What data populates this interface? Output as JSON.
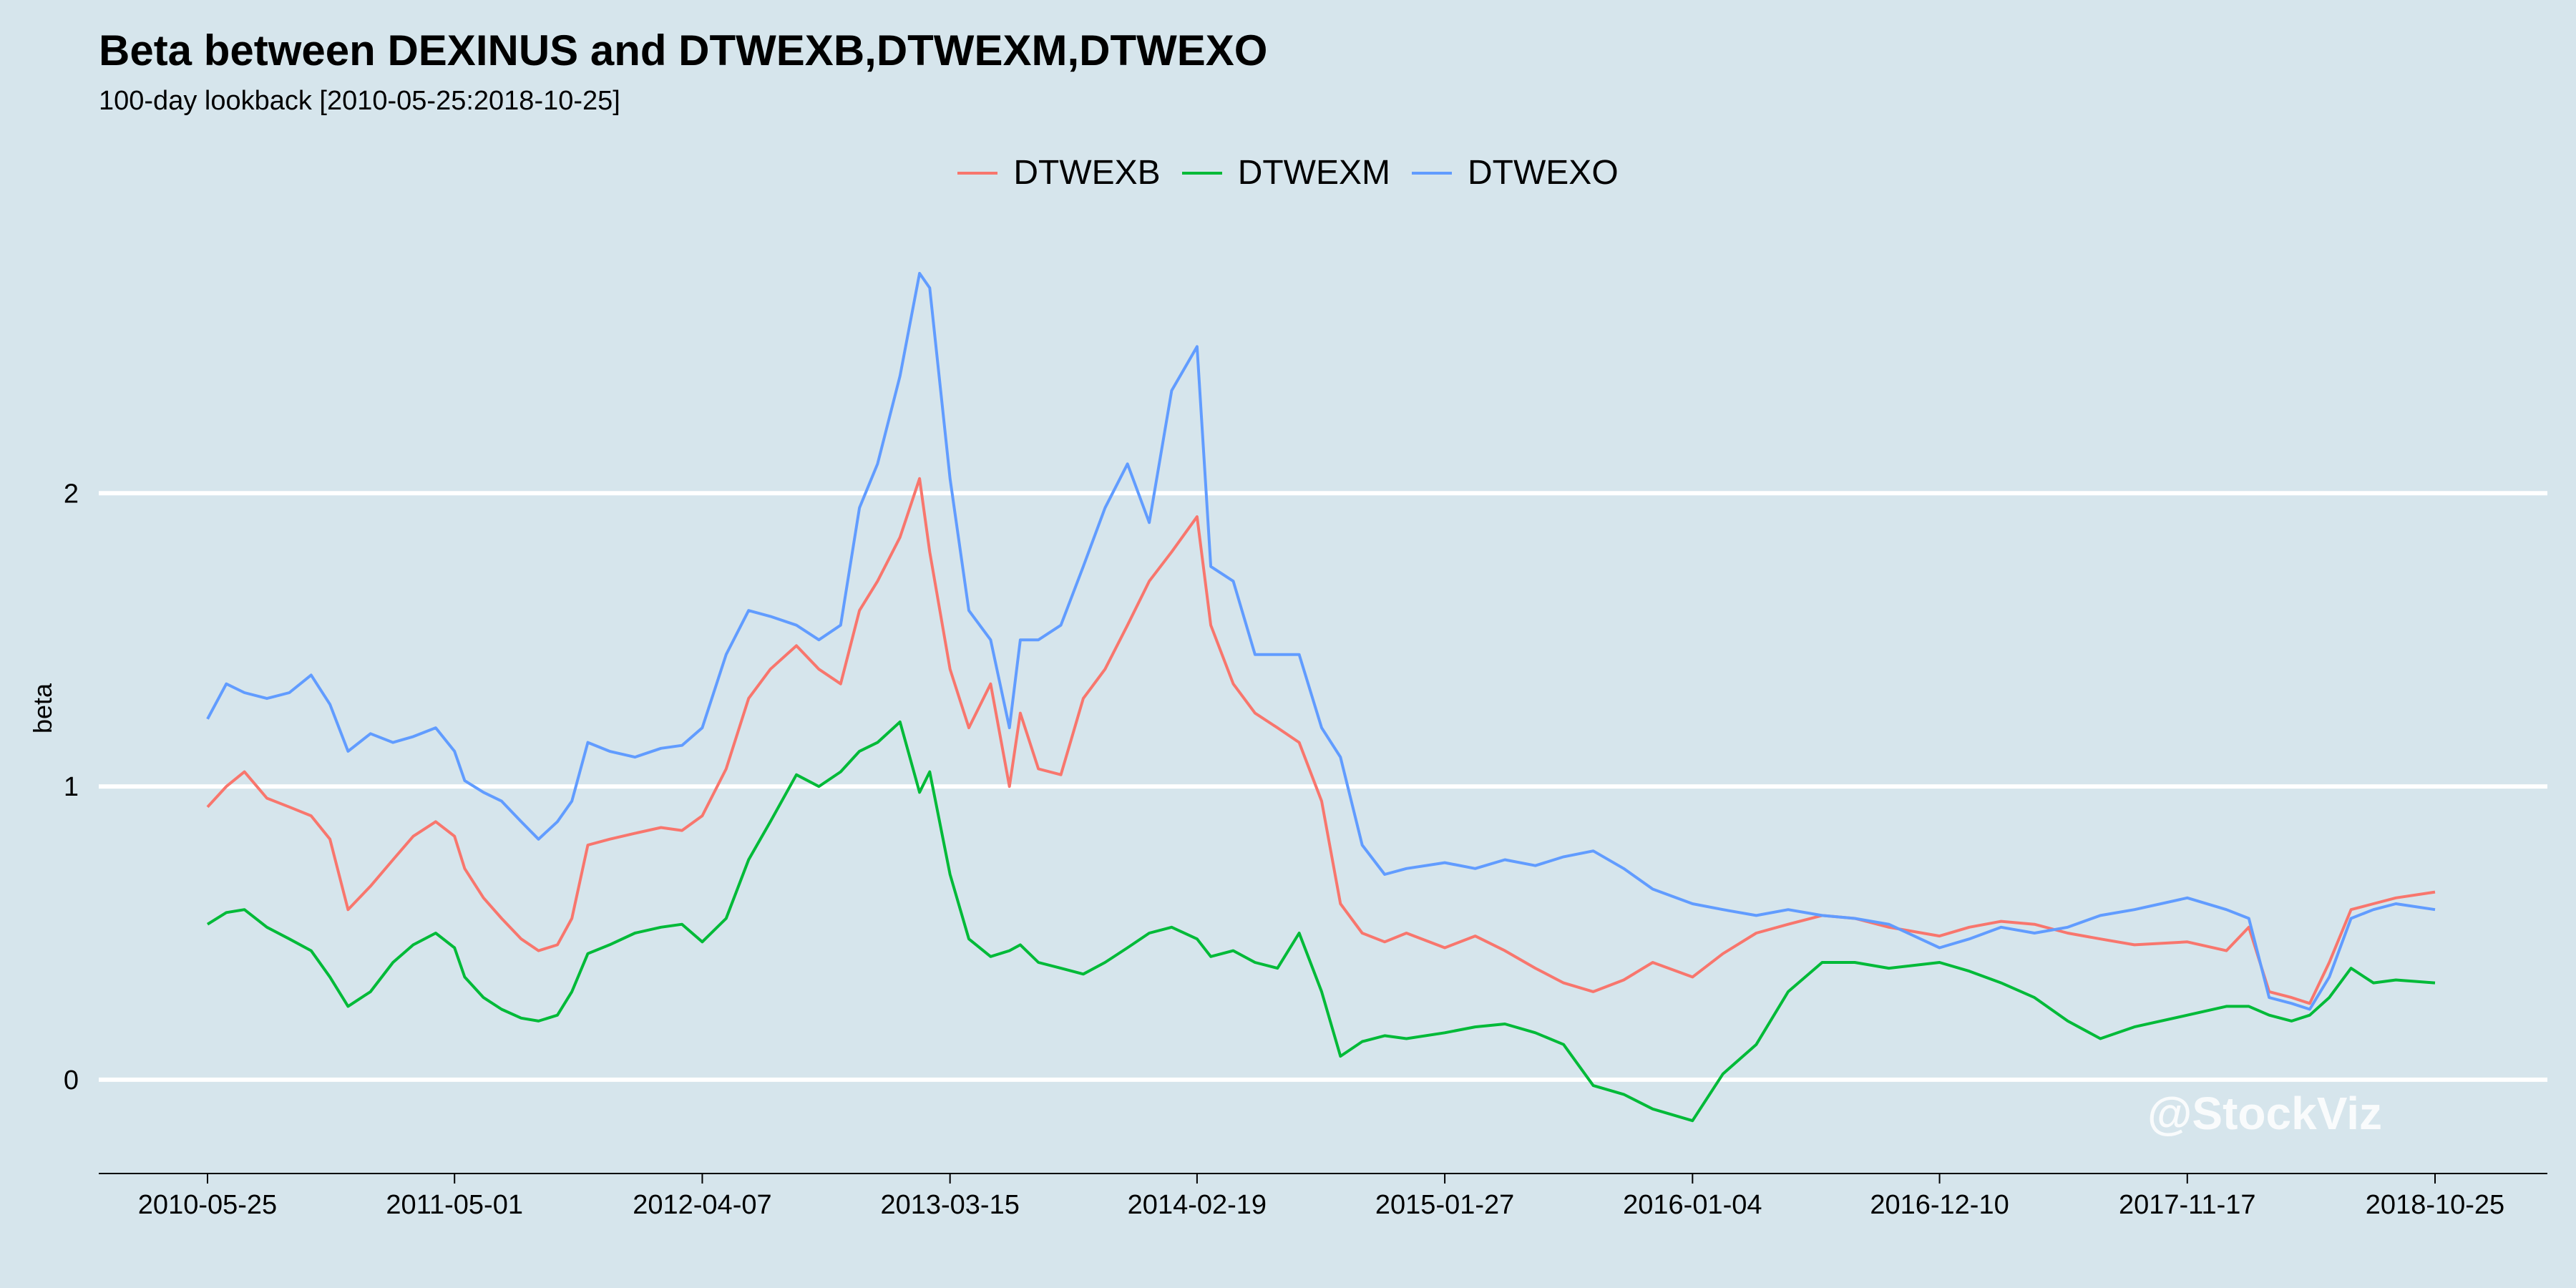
{
  "chart_data": {
    "type": "line",
    "title": "Beta between DEXINUS and DTWEXB,DTWEXM,DTWEXO",
    "subtitle": "100-day lookback [2010-05-25:2018-10-25]",
    "xlabel": "",
    "ylabel": "beta",
    "x_ticks": [
      "2010-05-25",
      "2011-05-01",
      "2012-04-07",
      "2013-03-15",
      "2014-02-19",
      "2015-01-27",
      "2016-01-04",
      "2016-12-10",
      "2017-11-17",
      "2018-10-25"
    ],
    "y_ticks": [
      0,
      1,
      2
    ],
    "ylim": [
      -0.32,
      2.95
    ],
    "grid": "horizontal",
    "legend_position": "top",
    "watermark": "@StockViz",
    "series": [
      {
        "name": "DTWEXB",
        "color": "#f8766d",
        "points": [
          [
            "2010-05-25",
            0.93
          ],
          [
            "2010-06-20",
            1.0
          ],
          [
            "2010-07-15",
            1.05
          ],
          [
            "2010-08-15",
            0.96
          ],
          [
            "2010-09-15",
            0.93
          ],
          [
            "2010-10-15",
            0.9
          ],
          [
            "2010-11-10",
            0.82
          ],
          [
            "2010-12-05",
            0.58
          ],
          [
            "2011-01-05",
            0.66
          ],
          [
            "2011-02-05",
            0.75
          ],
          [
            "2011-03-05",
            0.83
          ],
          [
            "2011-04-05",
            0.88
          ],
          [
            "2011-05-01",
            0.83
          ],
          [
            "2011-05-15",
            0.72
          ],
          [
            "2011-06-10",
            0.62
          ],
          [
            "2011-07-05",
            0.55
          ],
          [
            "2011-08-01",
            0.48
          ],
          [
            "2011-08-25",
            0.44
          ],
          [
            "2011-09-20",
            0.46
          ],
          [
            "2011-10-10",
            0.55
          ],
          [
            "2011-11-01",
            0.8
          ],
          [
            "2011-12-01",
            0.82
          ],
          [
            "2012-01-05",
            0.84
          ],
          [
            "2012-02-10",
            0.86
          ],
          [
            "2012-03-10",
            0.85
          ],
          [
            "2012-04-07",
            0.9
          ],
          [
            "2012-05-10",
            1.06
          ],
          [
            "2012-06-10",
            1.3
          ],
          [
            "2012-07-10",
            1.4
          ],
          [
            "2012-08-15",
            1.48
          ],
          [
            "2012-09-15",
            1.4
          ],
          [
            "2012-10-15",
            1.35
          ],
          [
            "2012-11-10",
            1.6
          ],
          [
            "2012-12-05",
            1.7
          ],
          [
            "2013-01-05",
            1.85
          ],
          [
            "2013-02-01",
            2.05
          ],
          [
            "2013-02-15",
            1.8
          ],
          [
            "2013-03-15",
            1.4
          ],
          [
            "2013-04-10",
            1.2
          ],
          [
            "2013-05-10",
            1.35
          ],
          [
            "2013-06-05",
            1.0
          ],
          [
            "2013-06-20",
            1.25
          ],
          [
            "2013-07-15",
            1.06
          ],
          [
            "2013-08-15",
            1.04
          ],
          [
            "2013-09-15",
            1.3
          ],
          [
            "2013-10-15",
            1.4
          ],
          [
            "2013-11-15",
            1.55
          ],
          [
            "2013-12-15",
            1.7
          ],
          [
            "2014-01-15",
            1.8
          ],
          [
            "2014-02-19",
            1.92
          ],
          [
            "2014-03-10",
            1.55
          ],
          [
            "2014-04-10",
            1.35
          ],
          [
            "2014-05-10",
            1.25
          ],
          [
            "2014-06-10",
            1.2
          ],
          [
            "2014-07-10",
            1.15
          ],
          [
            "2014-08-10",
            0.95
          ],
          [
            "2014-09-05",
            0.6
          ],
          [
            "2014-10-05",
            0.5
          ],
          [
            "2014-11-05",
            0.47
          ],
          [
            "2014-12-05",
            0.5
          ],
          [
            "2015-01-27",
            0.45
          ],
          [
            "2015-03-10",
            0.49
          ],
          [
            "2015-04-20",
            0.44
          ],
          [
            "2015-06-01",
            0.38
          ],
          [
            "2015-07-10",
            0.33
          ],
          [
            "2015-08-20",
            0.3
          ],
          [
            "2015-10-01",
            0.34
          ],
          [
            "2015-11-10",
            0.4
          ],
          [
            "2016-01-04",
            0.35
          ],
          [
            "2016-02-15",
            0.43
          ],
          [
            "2016-04-01",
            0.5
          ],
          [
            "2016-05-15",
            0.53
          ],
          [
            "2016-07-01",
            0.56
          ],
          [
            "2016-08-15",
            0.55
          ],
          [
            "2016-10-01",
            0.52
          ],
          [
            "2016-12-10",
            0.49
          ],
          [
            "2017-01-20",
            0.52
          ],
          [
            "2017-03-05",
            0.54
          ],
          [
            "2017-04-20",
            0.53
          ],
          [
            "2017-06-05",
            0.5
          ],
          [
            "2017-07-20",
            0.48
          ],
          [
            "2017-09-05",
            0.46
          ],
          [
            "2017-11-17",
            0.47
          ],
          [
            "2018-01-10",
            0.44
          ],
          [
            "2018-02-10",
            0.52
          ],
          [
            "2018-03-10",
            0.3
          ],
          [
            "2018-04-10",
            0.28
          ],
          [
            "2018-05-05",
            0.26
          ],
          [
            "2018-06-01",
            0.4
          ],
          [
            "2018-07-01",
            0.58
          ],
          [
            "2018-08-01",
            0.6
          ],
          [
            "2018-09-01",
            0.62
          ],
          [
            "2018-10-25",
            0.64
          ]
        ]
      },
      {
        "name": "DTWEXM",
        "color": "#00ba38",
        "points": [
          [
            "2010-05-25",
            0.53
          ],
          [
            "2010-06-20",
            0.57
          ],
          [
            "2010-07-15",
            0.58
          ],
          [
            "2010-08-15",
            0.52
          ],
          [
            "2010-09-15",
            0.48
          ],
          [
            "2010-10-15",
            0.44
          ],
          [
            "2010-11-10",
            0.35
          ],
          [
            "2010-12-05",
            0.25
          ],
          [
            "2011-01-05",
            0.3
          ],
          [
            "2011-02-05",
            0.4
          ],
          [
            "2011-03-05",
            0.46
          ],
          [
            "2011-04-05",
            0.5
          ],
          [
            "2011-05-01",
            0.45
          ],
          [
            "2011-05-15",
            0.35
          ],
          [
            "2011-06-10",
            0.28
          ],
          [
            "2011-07-05",
            0.24
          ],
          [
            "2011-08-01",
            0.21
          ],
          [
            "2011-08-25",
            0.2
          ],
          [
            "2011-09-20",
            0.22
          ],
          [
            "2011-10-10",
            0.3
          ],
          [
            "2011-11-01",
            0.43
          ],
          [
            "2011-12-01",
            0.46
          ],
          [
            "2012-01-05",
            0.5
          ],
          [
            "2012-02-10",
            0.52
          ],
          [
            "2012-03-10",
            0.53
          ],
          [
            "2012-04-07",
            0.47
          ],
          [
            "2012-05-10",
            0.55
          ],
          [
            "2012-06-10",
            0.75
          ],
          [
            "2012-07-10",
            0.88
          ],
          [
            "2012-08-15",
            1.04
          ],
          [
            "2012-09-15",
            1.0
          ],
          [
            "2012-10-15",
            1.05
          ],
          [
            "2012-11-10",
            1.12
          ],
          [
            "2012-12-05",
            1.15
          ],
          [
            "2013-01-05",
            1.22
          ],
          [
            "2013-02-01",
            0.98
          ],
          [
            "2013-02-15",
            1.05
          ],
          [
            "2013-03-15",
            0.7
          ],
          [
            "2013-04-10",
            0.48
          ],
          [
            "2013-05-10",
            0.42
          ],
          [
            "2013-06-05",
            0.44
          ],
          [
            "2013-06-20",
            0.46
          ],
          [
            "2013-07-15",
            0.4
          ],
          [
            "2013-08-15",
            0.38
          ],
          [
            "2013-09-15",
            0.36
          ],
          [
            "2013-10-15",
            0.4
          ],
          [
            "2013-11-15",
            0.45
          ],
          [
            "2013-12-15",
            0.5
          ],
          [
            "2014-01-15",
            0.52
          ],
          [
            "2014-02-19",
            0.48
          ],
          [
            "2014-03-10",
            0.42
          ],
          [
            "2014-04-10",
            0.44
          ],
          [
            "2014-05-10",
            0.4
          ],
          [
            "2014-06-10",
            0.38
          ],
          [
            "2014-07-10",
            0.5
          ],
          [
            "2014-08-10",
            0.3
          ],
          [
            "2014-09-05",
            0.08
          ],
          [
            "2014-10-05",
            0.13
          ],
          [
            "2014-11-05",
            0.15
          ],
          [
            "2014-12-05",
            0.14
          ],
          [
            "2015-01-27",
            0.16
          ],
          [
            "2015-03-10",
            0.18
          ],
          [
            "2015-04-20",
            0.19
          ],
          [
            "2015-06-01",
            0.16
          ],
          [
            "2015-07-10",
            0.12
          ],
          [
            "2015-08-20",
            -0.02
          ],
          [
            "2015-10-01",
            -0.05
          ],
          [
            "2015-11-10",
            -0.1
          ],
          [
            "2016-01-04",
            -0.14
          ],
          [
            "2016-02-15",
            0.02
          ],
          [
            "2016-04-01",
            0.12
          ],
          [
            "2016-05-15",
            0.3
          ],
          [
            "2016-07-01",
            0.4
          ],
          [
            "2016-08-15",
            0.4
          ],
          [
            "2016-10-01",
            0.38
          ],
          [
            "2016-12-10",
            0.4
          ],
          [
            "2017-01-20",
            0.37
          ],
          [
            "2017-03-05",
            0.33
          ],
          [
            "2017-04-20",
            0.28
          ],
          [
            "2017-06-05",
            0.2
          ],
          [
            "2017-07-20",
            0.14
          ],
          [
            "2017-09-05",
            0.18
          ],
          [
            "2017-11-17",
            0.22
          ],
          [
            "2018-01-10",
            0.25
          ],
          [
            "2018-02-10",
            0.25
          ],
          [
            "2018-03-10",
            0.22
          ],
          [
            "2018-04-10",
            0.2
          ],
          [
            "2018-05-05",
            0.22
          ],
          [
            "2018-06-01",
            0.28
          ],
          [
            "2018-07-01",
            0.38
          ],
          [
            "2018-08-01",
            0.33
          ],
          [
            "2018-09-01",
            0.34
          ],
          [
            "2018-10-25",
            0.33
          ]
        ]
      },
      {
        "name": "DTWEXO",
        "color": "#619cff",
        "points": [
          [
            "2010-05-25",
            1.23
          ],
          [
            "2010-06-20",
            1.35
          ],
          [
            "2010-07-15",
            1.32
          ],
          [
            "2010-08-15",
            1.3
          ],
          [
            "2010-09-15",
            1.32
          ],
          [
            "2010-10-15",
            1.38
          ],
          [
            "2010-11-10",
            1.28
          ],
          [
            "2010-12-05",
            1.12
          ],
          [
            "2011-01-05",
            1.18
          ],
          [
            "2011-02-05",
            1.15
          ],
          [
            "2011-03-05",
            1.17
          ],
          [
            "2011-04-05",
            1.2
          ],
          [
            "2011-05-01",
            1.12
          ],
          [
            "2011-05-15",
            1.02
          ],
          [
            "2011-06-10",
            0.98
          ],
          [
            "2011-07-05",
            0.95
          ],
          [
            "2011-08-01",
            0.88
          ],
          [
            "2011-08-25",
            0.82
          ],
          [
            "2011-09-20",
            0.88
          ],
          [
            "2011-10-10",
            0.95
          ],
          [
            "2011-11-01",
            1.15
          ],
          [
            "2011-12-01",
            1.12
          ],
          [
            "2012-01-05",
            1.1
          ],
          [
            "2012-02-10",
            1.13
          ],
          [
            "2012-03-10",
            1.14
          ],
          [
            "2012-04-07",
            1.2
          ],
          [
            "2012-05-10",
            1.45
          ],
          [
            "2012-06-10",
            1.6
          ],
          [
            "2012-07-10",
            1.58
          ],
          [
            "2012-08-15",
            1.55
          ],
          [
            "2012-09-15",
            1.5
          ],
          [
            "2012-10-15",
            1.55
          ],
          [
            "2012-11-10",
            1.95
          ],
          [
            "2012-12-05",
            2.1
          ],
          [
            "2013-01-05",
            2.4
          ],
          [
            "2013-02-01",
            2.75
          ],
          [
            "2013-02-15",
            2.7
          ],
          [
            "2013-03-15",
            2.05
          ],
          [
            "2013-04-10",
            1.6
          ],
          [
            "2013-05-10",
            1.5
          ],
          [
            "2013-06-05",
            1.2
          ],
          [
            "2013-06-20",
            1.5
          ],
          [
            "2013-07-15",
            1.5
          ],
          [
            "2013-08-15",
            1.55
          ],
          [
            "2013-09-15",
            1.75
          ],
          [
            "2013-10-15",
            1.95
          ],
          [
            "2013-11-15",
            2.1
          ],
          [
            "2013-12-15",
            1.9
          ],
          [
            "2014-01-15",
            2.35
          ],
          [
            "2014-02-19",
            2.5
          ],
          [
            "2014-03-10",
            1.75
          ],
          [
            "2014-04-10",
            1.7
          ],
          [
            "2014-05-10",
            1.45
          ],
          [
            "2014-06-10",
            1.45
          ],
          [
            "2014-07-10",
            1.45
          ],
          [
            "2014-08-10",
            1.2
          ],
          [
            "2014-09-05",
            1.1
          ],
          [
            "2014-10-05",
            0.8
          ],
          [
            "2014-11-05",
            0.7
          ],
          [
            "2014-12-05",
            0.72
          ],
          [
            "2015-01-27",
            0.74
          ],
          [
            "2015-03-10",
            0.72
          ],
          [
            "2015-04-20",
            0.75
          ],
          [
            "2015-06-01",
            0.73
          ],
          [
            "2015-07-10",
            0.76
          ],
          [
            "2015-08-20",
            0.78
          ],
          [
            "2015-10-01",
            0.72
          ],
          [
            "2015-11-10",
            0.65
          ],
          [
            "2016-01-04",
            0.6
          ],
          [
            "2016-02-15",
            0.58
          ],
          [
            "2016-04-01",
            0.56
          ],
          [
            "2016-05-15",
            0.58
          ],
          [
            "2016-07-01",
            0.56
          ],
          [
            "2016-08-15",
            0.55
          ],
          [
            "2016-10-01",
            0.53
          ],
          [
            "2016-12-10",
            0.45
          ],
          [
            "2017-01-20",
            0.48
          ],
          [
            "2017-03-05",
            0.52
          ],
          [
            "2017-04-20",
            0.5
          ],
          [
            "2017-06-05",
            0.52
          ],
          [
            "2017-07-20",
            0.56
          ],
          [
            "2017-09-05",
            0.58
          ],
          [
            "2017-11-17",
            0.62
          ],
          [
            "2018-01-10",
            0.58
          ],
          [
            "2018-02-10",
            0.55
          ],
          [
            "2018-03-10",
            0.28
          ],
          [
            "2018-04-10",
            0.26
          ],
          [
            "2018-05-05",
            0.24
          ],
          [
            "2018-06-01",
            0.35
          ],
          [
            "2018-07-01",
            0.55
          ],
          [
            "2018-08-01",
            0.58
          ],
          [
            "2018-09-01",
            0.6
          ],
          [
            "2018-10-25",
            0.58
          ]
        ]
      }
    ]
  }
}
